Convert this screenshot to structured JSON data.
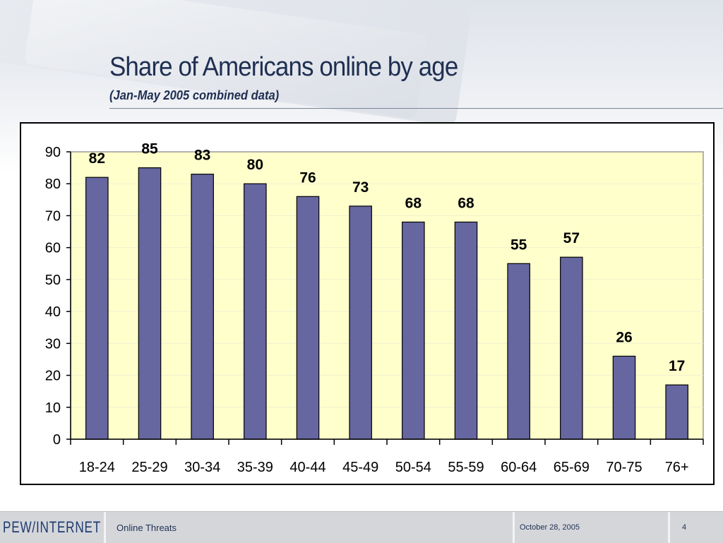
{
  "slide": {
    "title": "Share of Americans online by age",
    "subtitle": "(Jan-May 2005 combined data)"
  },
  "footer": {
    "logo": "PEW/INTERNET",
    "section": "Online Threats",
    "date": "October 28, 2005",
    "page": "4"
  },
  "colors": {
    "bar": "#6666a0",
    "plot_background": "#ffffcc",
    "text": "#1f2f52"
  },
  "chart_data": {
    "type": "bar",
    "categories": [
      "18-24",
      "25-29",
      "30-34",
      "35-39",
      "40-44",
      "45-49",
      "50-54",
      "55-59",
      "60-64",
      "65-69",
      "70-75",
      "76+"
    ],
    "values": [
      82,
      85,
      83,
      80,
      76,
      73,
      68,
      68,
      55,
      57,
      26,
      17
    ],
    "data_labels": [
      "82",
      "85",
      "83",
      "80",
      "76",
      "73",
      "68",
      "68",
      "55",
      "57",
      "26",
      "17"
    ],
    "y_ticks": [
      "0",
      "10",
      "20",
      "30",
      "40",
      "50",
      "60",
      "70",
      "80",
      "90"
    ],
    "ylim": [
      0,
      90
    ],
    "grid": true,
    "legend": "none"
  }
}
